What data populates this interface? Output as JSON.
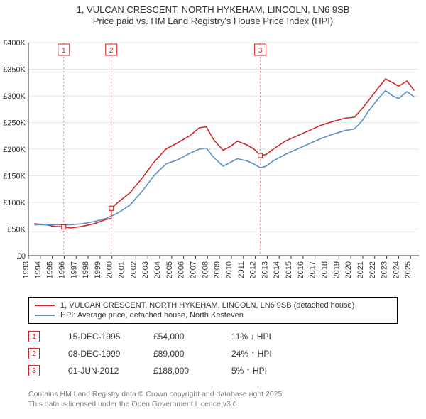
{
  "title": {
    "line1": "1, VULCAN CRESCENT, NORTH HYKEHAM, LINCOLN, LN6 9SB",
    "line2": "Price paid vs. HM Land Registry's House Price Index (HPI)",
    "fontsize": 13,
    "color": "#333333"
  },
  "chart": {
    "type": "line",
    "background_color": "#ffffff",
    "plot_bg": "#ffffff",
    "grid_color": "#e6e6e6",
    "axis_color": "#333333",
    "tick_font_size": 11,
    "tick_color": "#333333",
    "x": {
      "years": [
        1993,
        1994,
        1995,
        1996,
        1997,
        1998,
        1999,
        2000,
        2001,
        2002,
        2003,
        2004,
        2005,
        2006,
        2007,
        2008,
        2009,
        2010,
        2011,
        2012,
        2013,
        2014,
        2015,
        2016,
        2017,
        2018,
        2019,
        2020,
        2021,
        2022,
        2023,
        2024,
        2025
      ],
      "min": 1993,
      "max": 2025.7
    },
    "y": {
      "min": 0,
      "max": 400000,
      "step": 50000,
      "ticks": [
        "£0",
        "£50K",
        "£100K",
        "£150K",
        "£200K",
        "£250K",
        "£300K",
        "£350K",
        "£400K"
      ]
    },
    "legend": {
      "series1": "1, VULCAN CRESCENT, NORTH HYKEHAM, LINCOLN, LN6 9SB (detached house)",
      "series2": "HPI: Average price, detached house, North Kesteven"
    },
    "series": [
      {
        "name": "property",
        "color": "#d22626",
        "width": 1.6,
        "points": [
          [
            1993.5,
            60000
          ],
          [
            1994.5,
            58000
          ],
          [
            1995.2,
            55000
          ],
          [
            1995.96,
            54000
          ],
          [
            1996.5,
            52000
          ],
          [
            1997.5,
            55000
          ],
          [
            1998.5,
            60000
          ],
          [
            1999.5,
            68000
          ],
          [
            1999.94,
            70000
          ],
          [
            1999.94,
            89000
          ],
          [
            2000.5,
            100000
          ],
          [
            2001.5,
            118000
          ],
          [
            2002.5,
            145000
          ],
          [
            2003.5,
            175000
          ],
          [
            2004.5,
            200000
          ],
          [
            2005.5,
            212000
          ],
          [
            2006.5,
            225000
          ],
          [
            2007.3,
            240000
          ],
          [
            2007.9,
            242000
          ],
          [
            2008.5,
            218000
          ],
          [
            2009.3,
            198000
          ],
          [
            2009.9,
            205000
          ],
          [
            2010.5,
            215000
          ],
          [
            2011.3,
            208000
          ],
          [
            2011.9,
            200000
          ],
          [
            2012.42,
            188000
          ],
          [
            2012.9,
            190000
          ],
          [
            2013.5,
            200000
          ],
          [
            2014.5,
            215000
          ],
          [
            2015.5,
            225000
          ],
          [
            2016.5,
            235000
          ],
          [
            2017.5,
            245000
          ],
          [
            2018.5,
            252000
          ],
          [
            2019.5,
            258000
          ],
          [
            2020.3,
            260000
          ],
          [
            2020.9,
            275000
          ],
          [
            2021.5,
            292000
          ],
          [
            2022.3,
            315000
          ],
          [
            2022.9,
            332000
          ],
          [
            2023.5,
            325000
          ],
          [
            2024.0,
            318000
          ],
          [
            2024.7,
            328000
          ],
          [
            2025.3,
            310000
          ]
        ]
      },
      {
        "name": "hpi",
        "color": "#5a8fc7",
        "width": 1.6,
        "points": [
          [
            1993.5,
            58000
          ],
          [
            1994.5,
            58000
          ],
          [
            1995.5,
            58000
          ],
          [
            1996.5,
            58000
          ],
          [
            1997.5,
            60000
          ],
          [
            1998.5,
            64000
          ],
          [
            1999.5,
            70000
          ],
          [
            2000.5,
            80000
          ],
          [
            2001.5,
            95000
          ],
          [
            2002.5,
            120000
          ],
          [
            2003.5,
            150000
          ],
          [
            2004.5,
            172000
          ],
          [
            2005.5,
            180000
          ],
          [
            2006.5,
            192000
          ],
          [
            2007.3,
            200000
          ],
          [
            2007.9,
            202000
          ],
          [
            2008.5,
            185000
          ],
          [
            2009.3,
            168000
          ],
          [
            2009.9,
            175000
          ],
          [
            2010.5,
            182000
          ],
          [
            2011.3,
            178000
          ],
          [
            2011.9,
            172000
          ],
          [
            2012.42,
            165000
          ],
          [
            2012.9,
            168000
          ],
          [
            2013.5,
            178000
          ],
          [
            2014.5,
            190000
          ],
          [
            2015.5,
            200000
          ],
          [
            2016.5,
            210000
          ],
          [
            2017.5,
            220000
          ],
          [
            2018.5,
            228000
          ],
          [
            2019.5,
            235000
          ],
          [
            2020.3,
            238000
          ],
          [
            2020.9,
            252000
          ],
          [
            2021.5,
            272000
          ],
          [
            2022.3,
            295000
          ],
          [
            2022.9,
            310000
          ],
          [
            2023.5,
            300000
          ],
          [
            2024.0,
            295000
          ],
          [
            2024.7,
            308000
          ],
          [
            2025.3,
            298000
          ]
        ]
      }
    ],
    "price_markers": [
      {
        "n": "1",
        "x": 1995.96,
        "y": 54000,
        "color": "#d22626"
      },
      {
        "n": "2",
        "x": 1999.94,
        "y": 89000,
        "color": "#d22626"
      },
      {
        "n": "3",
        "x": 2012.42,
        "y": 188000,
        "color": "#d22626"
      }
    ],
    "marker_rows": [
      {
        "n": "1",
        "date": "15-DEC-1995",
        "price": "£54,000",
        "delta": "11% ↓ HPI",
        "color": "#d22626"
      },
      {
        "n": "2",
        "date": "08-DEC-1999",
        "price": "£89,000",
        "delta": "24% ↑ HPI",
        "color": "#d22626"
      },
      {
        "n": "3",
        "date": "01-JUN-2012",
        "price": "£188,000",
        "delta": "5% ↑ HPI",
        "color": "#d22626"
      }
    ]
  },
  "footer": {
    "line1": "Contains HM Land Registry data © Crown copyright and database right 2025.",
    "line2": "This data is licensed under the Open Government Licence v3.0."
  }
}
